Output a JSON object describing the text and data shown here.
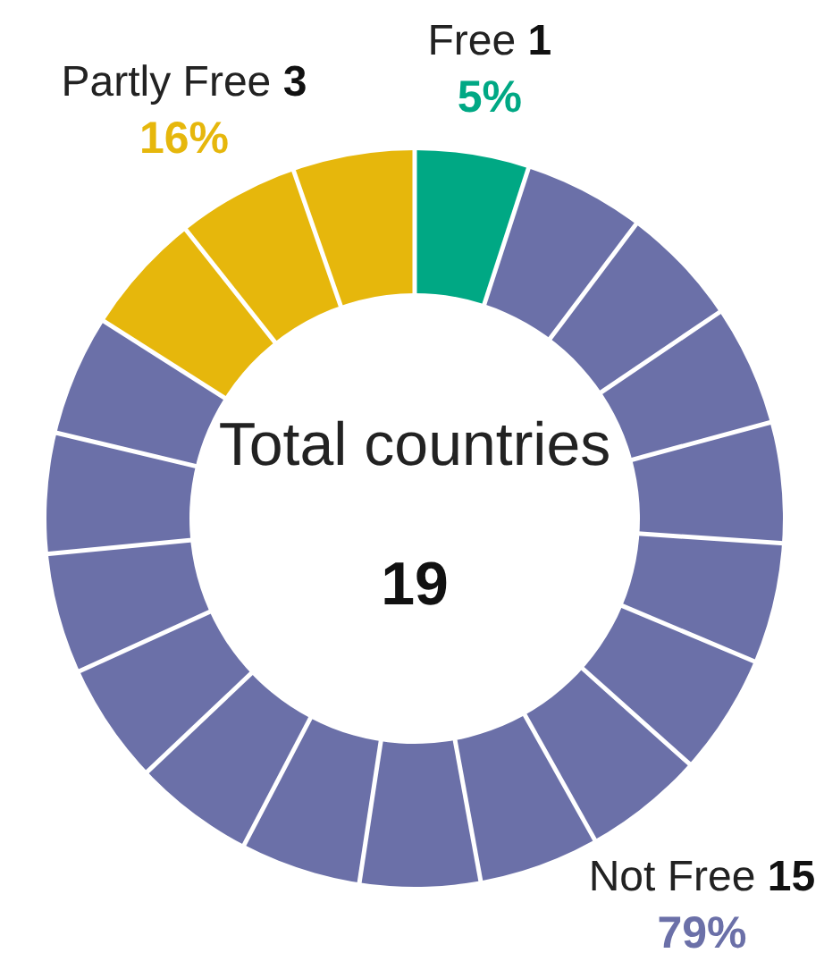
{
  "chart_data": {
    "type": "donut",
    "title": "Total countries",
    "annotations": [
      "19",
      {
        "text": "1",
        "x": "Free"
      },
      {
        "text": "15",
        "x": "Not Free"
      },
      {
        "text": "3",
        "x": "Partly Free"
      }
    ],
    "categories": [
      "Free",
      "Not Free",
      "Partly Free"
    ],
    "values": [
      5,
      79,
      16
    ],
    "colors": [
      "#00a884",
      "#6b70a8",
      "#e6b70c"
    ],
    "value_labels": [
      "5%",
      "79%",
      "16%"
    ]
  }
}
